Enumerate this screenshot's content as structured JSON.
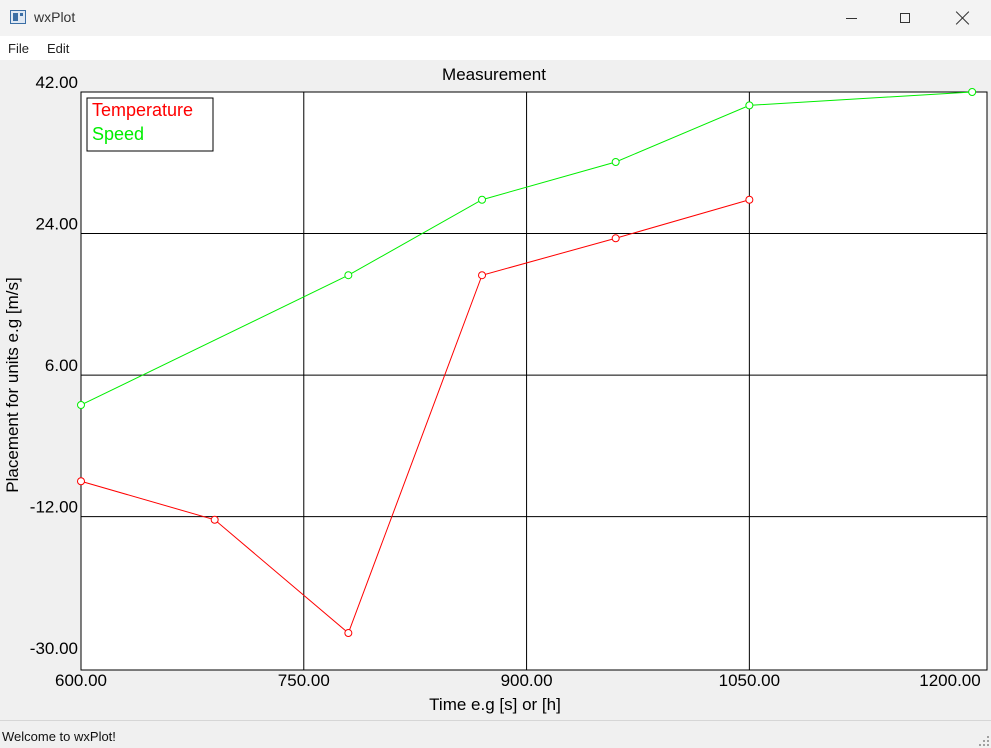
{
  "window": {
    "title": "wxPlot"
  },
  "menu": {
    "items": [
      "File",
      "Edit"
    ]
  },
  "status": {
    "text": "Welcome to wxPlot!"
  },
  "chart_data": {
    "type": "line",
    "title": "Measurement",
    "xlabel": "Time e.g [s] or [h]",
    "ylabel": "Placement for units e.g [m/s]",
    "xlim": [
      600,
      1210
    ],
    "ylim": [
      -31.5,
      42
    ],
    "xticks": [
      "600.00",
      "750.00",
      "900.00",
      "1050.00",
      "1200.00"
    ],
    "yticks": [
      "42.00",
      "24.00",
      "6.00",
      "-12.00",
      "-30.00"
    ],
    "grid": true,
    "legend_position": "top-left",
    "series": [
      {
        "name": "Temperature",
        "color": "#ff0000",
        "x": [
          600,
          690,
          780,
          870,
          960,
          1050
        ],
        "y": [
          -7.5,
          -12.4,
          -26.8,
          18.7,
          23.4,
          28.3
        ]
      },
      {
        "name": "Speed",
        "color": "#00ee00",
        "x": [
          600,
          780,
          870,
          960,
          1050,
          1200
        ],
        "y": [
          2.2,
          18.7,
          28.3,
          33.1,
          40.3,
          42
        ]
      }
    ]
  }
}
